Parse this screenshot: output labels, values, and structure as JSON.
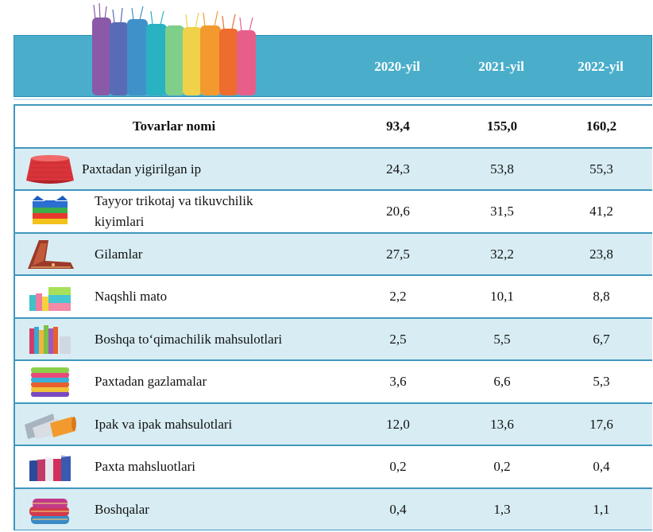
{
  "header": {
    "years": [
      "2020-yil",
      "2021-yil",
      "2022-yil"
    ]
  },
  "table": {
    "head": {
      "label": "Tovarlar nomi",
      "values": [
        "93,4",
        "155,0",
        "160,2"
      ]
    },
    "rows": [
      {
        "name": "Paxtadan yigirilgan ip",
        "icon": "yarn-spool-icon",
        "values": [
          "24,3",
          "53,8",
          "55,3"
        ]
      },
      {
        "name_line1": "Tayyor trikotaj va tikuvchilik",
        "name_line2": "kiyimlari",
        "icon": "folded-clothes-icon",
        "values": [
          "20,6",
          "31,5",
          "41,2"
        ]
      },
      {
        "name": "Gilamlar",
        "icon": "carpet-icon",
        "values": [
          "27,5",
          "32,2",
          "23,8"
        ]
      },
      {
        "name": "Naqshli mato",
        "icon": "fabric-rolls-icon",
        "values": [
          "2,2",
          "10,1",
          "8,8"
        ]
      },
      {
        "name": "Boshqa to‘qimachilik mahsulotlari",
        "icon": "textile-products-icon",
        "values": [
          "2,5",
          "5,5",
          "6,7"
        ]
      },
      {
        "name": "Paxtadan gazlamalar",
        "icon": "towel-stack-icon",
        "values": [
          "3,6",
          "6,6",
          "5,3"
        ]
      },
      {
        "name": "Ipak va ipak mahsulotlari",
        "icon": "silk-rolls-icon",
        "values": [
          "12,0",
          "13,6",
          "17,6"
        ]
      },
      {
        "name": "Paxta mahsluotlari",
        "icon": "cotton-goods-icon",
        "values": [
          "0,2",
          "0,2",
          "0,4"
        ]
      },
      {
        "name": "Boshqalar",
        "icon": "other-textiles-icon",
        "values": [
          "0,4",
          "1,3",
          "1,1"
        ]
      }
    ]
  }
}
